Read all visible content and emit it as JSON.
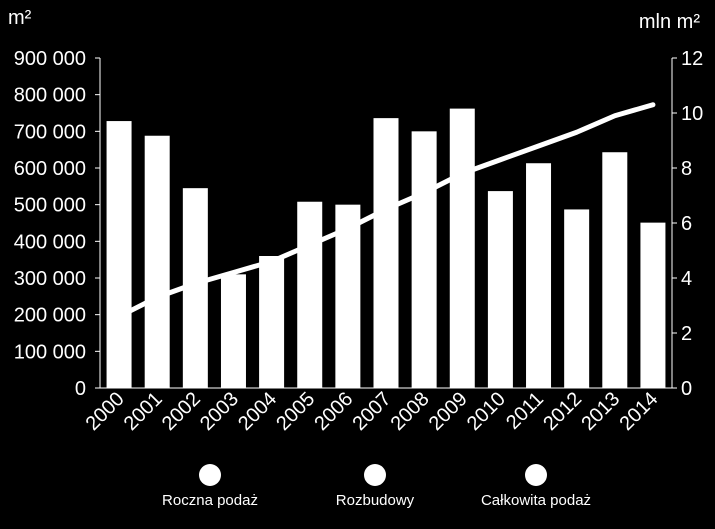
{
  "chart_data": {
    "type": "bar",
    "categories": [
      "2000",
      "2001",
      "2002",
      "2003",
      "2004",
      "2005",
      "2006",
      "2007",
      "2008",
      "2009",
      "2010",
      "2011",
      "2012",
      "2013",
      "2014"
    ],
    "series": [
      {
        "name": "Roczna podaż",
        "type": "bar",
        "axis": "left",
        "values": [
          728000,
          688000,
          545000,
          310000,
          360000,
          508000,
          500000,
          736000,
          700000,
          762000,
          537000,
          613000,
          487000,
          643000,
          451000
        ]
      },
      {
        "name": "Całkowita podaż",
        "type": "line",
        "axis": "right",
        "values": [
          2.6,
          3.3,
          3.8,
          4.2,
          4.6,
          5.2,
          5.8,
          6.5,
          7.1,
          7.8,
          8.3,
          8.8,
          9.3,
          9.9,
          10.3
        ]
      }
    ],
    "y_left": {
      "unit": "m²",
      "min": 0,
      "max": 900000,
      "ticks": [
        "0",
        "100 000",
        "200 000",
        "300 000",
        "400 000",
        "500 000",
        "600 000",
        "700 000",
        "800 000",
        "900 000"
      ]
    },
    "y_right": {
      "unit": "mln m²",
      "min": 0,
      "max": 12,
      "ticks": [
        "0",
        "2",
        "4",
        "6",
        "8",
        "10",
        "12"
      ]
    },
    "legend": {
      "placement": "bottom",
      "items": [
        {
          "label": "Roczna podaż"
        },
        {
          "label": "Rozbudowy"
        },
        {
          "label": "Całkowita podaż"
        }
      ]
    },
    "colors": {
      "background": "#000000",
      "bars": "#ffffff",
      "line": "#ffffff",
      "axis": "#ffffff"
    },
    "grid": false
  }
}
